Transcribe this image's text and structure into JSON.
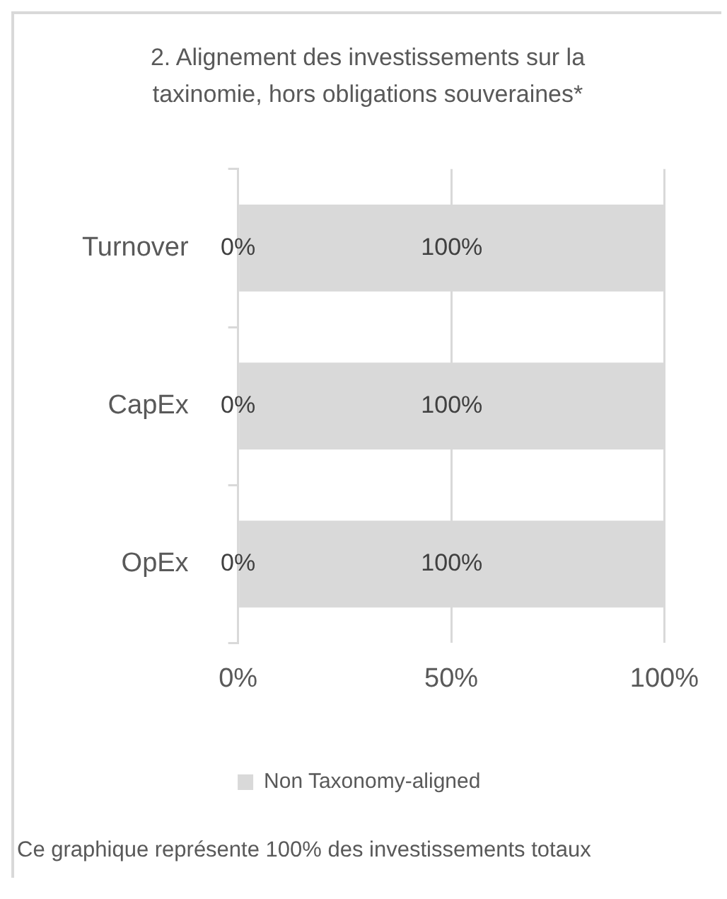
{
  "chart_data": {
    "type": "bar",
    "orientation": "horizontal",
    "title": "2. Alignement des investissements sur la taxinomie, hors obligations souveraines*",
    "categories": [
      "Turnover",
      "CapEx",
      "OpEx"
    ],
    "series": [
      {
        "name": "Non Taxonomy-aligned",
        "color": "#d9d9d9",
        "values": [
          100,
          100,
          100
        ],
        "value_labels": [
          "100%",
          "100%",
          "100%"
        ]
      }
    ],
    "xlim": [
      0,
      100
    ],
    "xticks": [
      {
        "value": 0,
        "label": "0%"
      },
      {
        "value": 50,
        "label": "50%"
      },
      {
        "value": 100,
        "label": "100%"
      }
    ],
    "grid": "x",
    "legend": "bottom",
    "annotations": [
      {
        "text": "0%",
        "y": "Turnover"
      },
      {
        "text": "0%",
        "y": "CapEx"
      },
      {
        "text": "0%",
        "y": "OpEx"
      },
      "Ce graphique représente 100% des investissements totaux"
    ]
  }
}
